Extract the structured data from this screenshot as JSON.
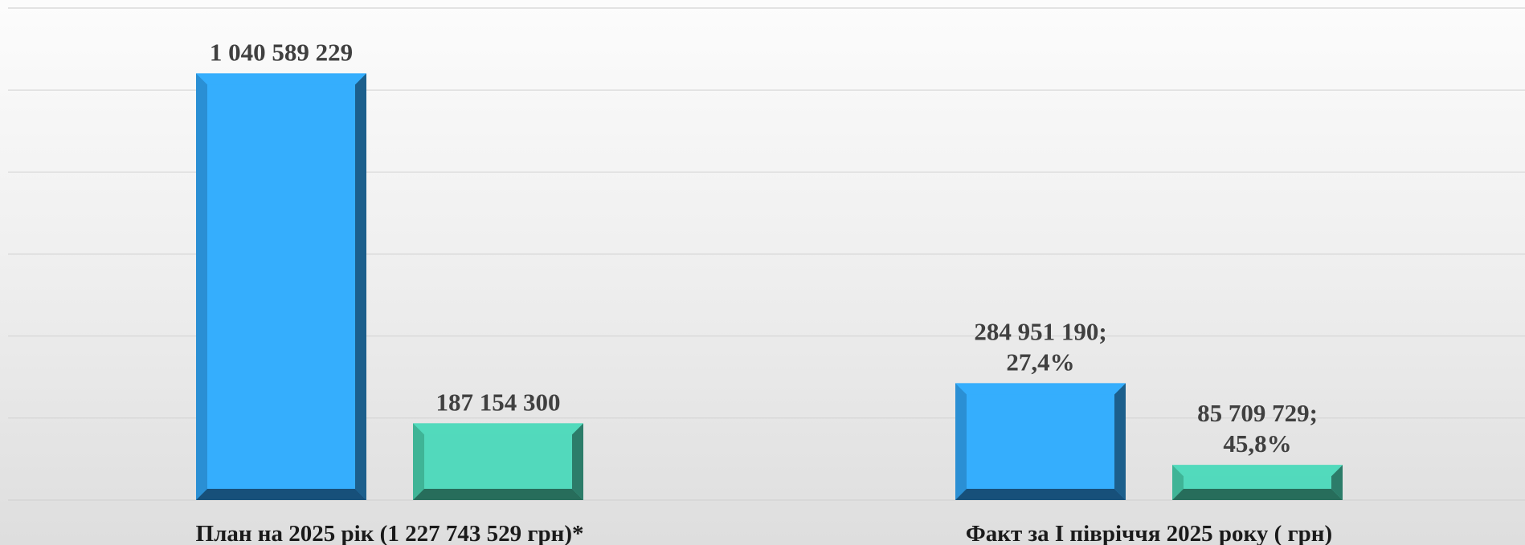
{
  "chart_data": {
    "type": "bar",
    "categories": [
      "План на 2025 рік (1 227 743 529 грн)*",
      "Факт за І півріччя 2025 року ( грн)"
    ],
    "series": [
      {
        "values": [
          1040589229,
          284951190
        ],
        "labels": [
          "1 040 589 229",
          "284 951 190;\n27,4%"
        ]
      },
      {
        "values": [
          187154300,
          85709729
        ],
        "labels": [
          "187 154 300",
          "85 709 729;\n45,8%"
        ]
      }
    ],
    "ylim": [
      0,
      1200000000
    ],
    "grid": true,
    "legend": "none",
    "xlabel": "",
    "ylabel": ""
  },
  "colors": {
    "series_1_face": "#35aefd",
    "series_1_light": "#2a8fd4",
    "series_1_dark": "#1c5f8c",
    "series_1_bottom": "#17507a",
    "series_2_face": "#52d9bc",
    "series_2_light": "#3fb496",
    "series_2_dark": "#2c7c69",
    "series_2_bottom": "#276d5b",
    "gridline": "#d4d4d4"
  }
}
